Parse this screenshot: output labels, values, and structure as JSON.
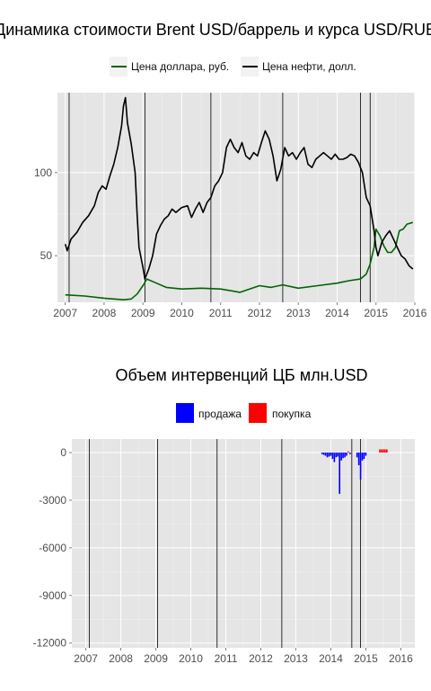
{
  "chart_data": [
    {
      "type": "line",
      "title": "Динамика стоимости Brent USD/баррель и курса USD/RUB",
      "legend": [
        {
          "name": "Цена доллара, руб.",
          "color": "#006400"
        },
        {
          "name": "Цена нефти, долл.",
          "color": "#000000"
        }
      ],
      "legend_position": "top",
      "xlim": [
        2006.8,
        2016.0
      ],
      "ylim": [
        22,
        148
      ],
      "x_ticks": [
        2007,
        2008,
        2009,
        2010,
        2011,
        2012,
        2013,
        2014,
        2015,
        2016
      ],
      "x_tick_labels": [
        "2007",
        "2008",
        "2009",
        "2010",
        "2011",
        "2012",
        "2013",
        "2014",
        "2015",
        "2016"
      ],
      "y_ticks": [
        50,
        100
      ],
      "y_tick_labels": [
        "50",
        "100"
      ],
      "grid": true,
      "vlines": [
        2007.1,
        2009.05,
        2010.75,
        2012.6,
        2014.6,
        2014.85
      ],
      "series": [
        {
          "name": "Цена нефти, долл.",
          "color": "#000000",
          "x": [
            2007.0,
            2007.05,
            2007.15,
            2007.3,
            2007.45,
            2007.6,
            2007.75,
            2007.85,
            2007.95,
            2008.05,
            2008.15,
            2008.25,
            2008.35,
            2008.45,
            2008.5,
            2008.55,
            2008.6,
            2008.7,
            2008.8,
            2008.85,
            2008.9,
            2009.0,
            2009.05,
            2009.15,
            2009.25,
            2009.35,
            2009.45,
            2009.55,
            2009.65,
            2009.75,
            2009.85,
            2010.0,
            2010.15,
            2010.25,
            2010.35,
            2010.45,
            2010.55,
            2010.65,
            2010.75,
            2010.85,
            2010.95,
            2011.05,
            2011.15,
            2011.25,
            2011.35,
            2011.45,
            2011.55,
            2011.65,
            2011.75,
            2011.85,
            2011.95,
            2012.05,
            2012.15,
            2012.25,
            2012.35,
            2012.45,
            2012.55,
            2012.65,
            2012.75,
            2012.85,
            2012.95,
            2013.05,
            2013.15,
            2013.25,
            2013.35,
            2013.45,
            2013.55,
            2013.65,
            2013.75,
            2013.85,
            2013.95,
            2014.05,
            2014.15,
            2014.25,
            2014.35,
            2014.45,
            2014.55,
            2014.65,
            2014.75,
            2014.85,
            2014.95,
            2015.0,
            2015.05,
            2015.15,
            2015.25,
            2015.35,
            2015.45,
            2015.55,
            2015.65,
            2015.75,
            2015.85,
            2015.95
          ],
          "values": [
            57,
            53,
            60,
            64,
            70,
            74,
            80,
            88,
            92,
            90,
            98,
            105,
            115,
            128,
            140,
            145,
            130,
            117,
            100,
            75,
            55,
            43,
            36,
            42,
            50,
            63,
            68,
            72,
            74,
            78,
            76,
            79,
            80,
            73,
            78,
            82,
            76,
            82,
            85,
            92,
            95,
            100,
            115,
            120,
            115,
            112,
            118,
            110,
            108,
            112,
            110,
            118,
            125,
            120,
            110,
            95,
            102,
            115,
            110,
            112,
            108,
            112,
            115,
            105,
            103,
            108,
            110,
            112,
            110,
            108,
            111,
            108,
            108,
            109,
            111,
            110,
            106,
            100,
            85,
            80,
            65,
            55,
            50,
            58,
            62,
            65,
            60,
            55,
            50,
            48,
            44,
            42
          ]
        },
        {
          "name": "Цена доллара, руб.",
          "color": "#006400",
          "x": [
            2007.0,
            2007.5,
            2008.0,
            2008.5,
            2008.7,
            2008.85,
            2009.0,
            2009.1,
            2009.3,
            2009.6,
            2010.0,
            2010.5,
            2011.0,
            2011.5,
            2012.0,
            2012.3,
            2012.6,
            2013.0,
            2013.5,
            2014.0,
            2014.3,
            2014.6,
            2014.75,
            2014.85,
            2014.95,
            2015.0,
            2015.1,
            2015.2,
            2015.3,
            2015.4,
            2015.5,
            2015.6,
            2015.7,
            2015.8,
            2015.95
          ],
          "values": [
            26.5,
            25.8,
            24.5,
            23.5,
            24.0,
            27.0,
            32.0,
            36.0,
            34.0,
            31.0,
            30.0,
            30.5,
            30.0,
            28.0,
            32.0,
            31.0,
            32.5,
            30.5,
            32.0,
            33.5,
            35.0,
            36.0,
            39.0,
            45.0,
            55.0,
            66.0,
            62.0,
            56.0,
            52.0,
            52.0,
            55.0,
            65.0,
            66.0,
            69.0,
            70.0
          ]
        }
      ]
    },
    {
      "type": "bar",
      "title": "Объем интервенций ЦБ млн.USD",
      "legend": [
        {
          "name": "продажа",
          "color": "#0000ff"
        },
        {
          "name": "покупка",
          "color": "#ff0000"
        }
      ],
      "legend_position": "top",
      "xlim": [
        2006.6,
        2016.4
      ],
      "ylim": [
        -12300,
        850
      ],
      "x_ticks": [
        2007,
        2008,
        2009,
        2010,
        2011,
        2012,
        2013,
        2014,
        2015,
        2016
      ],
      "x_tick_labels": [
        "2007",
        "2008",
        "2009",
        "2010",
        "2011",
        "2012",
        "2013",
        "2014",
        "2015",
        "2016"
      ],
      "y_ticks": [
        0,
        -3000,
        -6000,
        -9000,
        -12000
      ],
      "y_tick_labels": [
        "0",
        "-3000",
        "-6000",
        "-9000",
        "-12000"
      ],
      "grid": true,
      "vlines": [
        2007.1,
        2009.05,
        2010.75,
        2012.6,
        2014.6,
        2014.85
      ],
      "series": [
        {
          "name": "продажа",
          "color": "#0000ff",
          "x": [
            2013.75,
            2013.8,
            2013.85,
            2013.9,
            2013.95,
            2014.0,
            2014.05,
            2014.1,
            2014.15,
            2014.2,
            2014.25,
            2014.3,
            2014.35,
            2014.4,
            2014.45,
            2014.55,
            2014.75,
            2014.8,
            2014.85,
            2014.9,
            2014.95,
            2015.0
          ],
          "values": [
            -100,
            -150,
            -200,
            -300,
            -250,
            -200,
            -400,
            -600,
            -300,
            -250,
            -2600,
            -500,
            -350,
            -300,
            -200,
            -100,
            -300,
            -800,
            -1700,
            -500,
            -400,
            -200
          ]
        },
        {
          "name": "покупка",
          "color": "#ff0000",
          "x": [
            2014.5,
            2015.4,
            2015.45,
            2015.5,
            2015.55,
            2015.6
          ],
          "values": [
            80,
            200,
            200,
            200,
            200,
            200
          ]
        }
      ]
    }
  ]
}
